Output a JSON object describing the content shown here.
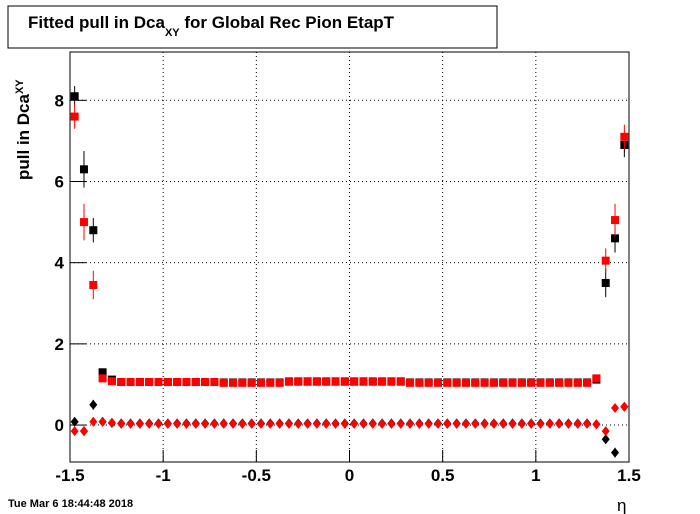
{
  "chart_data": {
    "type": "scatter",
    "title": "Fitted pull in Dca",
    "title_subscript": "XY",
    "title_suffix": " for Global Rec Pion EtapT",
    "y_label": "pull in Dca",
    "y_label_subscript": "XY",
    "x_label": "η",
    "timestamp": "Tue Mar  6 18:44:48 2018",
    "xlim": [
      -1.5,
      1.5
    ],
    "xticks": [
      -1.5,
      -1,
      -0.5,
      0,
      0.5,
      1,
      1.5
    ],
    "ylim": [
      -0.91,
      9.19
    ],
    "yticks": [
      0,
      2,
      4,
      6,
      8
    ],
    "grid": true,
    "x": [
      -1.475,
      -1.425,
      -1.375,
      -1.325,
      -1.275,
      -1.225,
      -1.175,
      -1.125,
      -1.075,
      -1.025,
      -0.975,
      -0.925,
      -0.875,
      -0.825,
      -0.775,
      -0.725,
      -0.675,
      -0.625,
      -0.575,
      -0.525,
      -0.475,
      -0.425,
      -0.375,
      -0.325,
      -0.275,
      -0.225,
      -0.175,
      -0.125,
      -0.075,
      -0.025,
      0.025,
      0.075,
      0.125,
      0.175,
      0.225,
      0.275,
      0.325,
      0.375,
      0.425,
      0.475,
      0.525,
      0.575,
      0.625,
      0.675,
      0.725,
      0.775,
      0.825,
      0.875,
      0.925,
      0.975,
      1.025,
      1.075,
      1.125,
      1.175,
      1.225,
      1.275,
      1.325,
      1.375,
      1.425,
      1.475
    ],
    "series": [
      {
        "color": "#000000",
        "marker": "square",
        "values": [
          8.1,
          6.3,
          4.8,
          1.3,
          1.12,
          1.06,
          1.06,
          1.06,
          1.06,
          1.06,
          1.06,
          1.06,
          1.06,
          1.06,
          1.06,
          1.06,
          1.05,
          1.05,
          1.05,
          1.05,
          1.05,
          1.05,
          1.05,
          1.07,
          1.07,
          1.07,
          1.07,
          1.07,
          1.07,
          1.07,
          1.07,
          1.07,
          1.07,
          1.07,
          1.07,
          1.07,
          1.05,
          1.05,
          1.05,
          1.05,
          1.05,
          1.05,
          1.05,
          1.05,
          1.05,
          1.05,
          1.05,
          1.05,
          1.05,
          1.05,
          1.05,
          1.05,
          1.05,
          1.05,
          1.05,
          1.05,
          1.12,
          3.5,
          4.6,
          6.9
        ],
        "errors": [
          0.25,
          0.45,
          0.3,
          0.06,
          0.03,
          0.02,
          0.02,
          0.02,
          0.02,
          0.02,
          0.02,
          0.02,
          0.02,
          0.02,
          0.02,
          0.02,
          0.02,
          0.02,
          0.02,
          0.02,
          0.02,
          0.02,
          0.02,
          0.02,
          0.02,
          0.02,
          0.02,
          0.02,
          0.02,
          0.02,
          0.02,
          0.02,
          0.02,
          0.02,
          0.02,
          0.02,
          0.02,
          0.02,
          0.02,
          0.02,
          0.02,
          0.02,
          0.02,
          0.02,
          0.02,
          0.02,
          0.02,
          0.02,
          0.02,
          0.02,
          0.02,
          0.02,
          0.02,
          0.02,
          0.02,
          0.02,
          0.03,
          0.35,
          0.35,
          0.3
        ]
      },
      {
        "color": "#ff0000",
        "marker": "square",
        "values": [
          7.6,
          5.0,
          3.45,
          1.15,
          1.08,
          1.06,
          1.06,
          1.06,
          1.06,
          1.06,
          1.06,
          1.06,
          1.06,
          1.06,
          1.06,
          1.06,
          1.04,
          1.04,
          1.04,
          1.04,
          1.04,
          1.04,
          1.04,
          1.08,
          1.08,
          1.08,
          1.08,
          1.08,
          1.08,
          1.08,
          1.08,
          1.08,
          1.08,
          1.08,
          1.08,
          1.08,
          1.04,
          1.04,
          1.04,
          1.04,
          1.04,
          1.04,
          1.04,
          1.04,
          1.04,
          1.04,
          1.04,
          1.04,
          1.04,
          1.04,
          1.04,
          1.04,
          1.04,
          1.04,
          1.04,
          1.04,
          1.15,
          4.05,
          5.05,
          7.1
        ],
        "errors": [
          0.3,
          0.45,
          0.35,
          0.05,
          0.03,
          0.02,
          0.02,
          0.02,
          0.02,
          0.02,
          0.02,
          0.02,
          0.02,
          0.02,
          0.02,
          0.02,
          0.02,
          0.02,
          0.02,
          0.02,
          0.02,
          0.02,
          0.02,
          0.02,
          0.02,
          0.02,
          0.02,
          0.02,
          0.02,
          0.02,
          0.02,
          0.02,
          0.02,
          0.02,
          0.02,
          0.02,
          0.02,
          0.02,
          0.02,
          0.02,
          0.02,
          0.02,
          0.02,
          0.02,
          0.02,
          0.02,
          0.02,
          0.02,
          0.02,
          0.02,
          0.02,
          0.02,
          0.02,
          0.02,
          0.02,
          0.02,
          0.03,
          0.3,
          0.4,
          0.3
        ]
      },
      {
        "color": "#000000",
        "marker": "diamond",
        "values": [
          0.08,
          -0.15,
          0.5,
          0.08,
          0.05,
          0.04,
          0.04,
          0.04,
          0.04,
          0.04,
          0.04,
          0.04,
          0.04,
          0.04,
          0.04,
          0.04,
          0.04,
          0.04,
          0.04,
          0.04,
          0.04,
          0.04,
          0.04,
          0.04,
          0.04,
          0.04,
          0.04,
          0.04,
          0.04,
          0.04,
          0.04,
          0.04,
          0.04,
          0.04,
          0.04,
          0.04,
          0.04,
          0.04,
          0.04,
          0.04,
          0.04,
          0.04,
          0.04,
          0.04,
          0.04,
          0.04,
          0.04,
          0.04,
          0.04,
          0.04,
          0.04,
          0.04,
          0.04,
          0.04,
          0.04,
          0.04,
          0.02,
          -0.35,
          -0.68,
          0.45
        ],
        "errors": [
          0.1,
          0.1,
          0.12,
          0.02,
          0.01,
          0.01,
          0.01,
          0.01,
          0.01,
          0.01,
          0.01,
          0.01,
          0.01,
          0.01,
          0.01,
          0.01,
          0.01,
          0.01,
          0.01,
          0.01,
          0.01,
          0.01,
          0.01,
          0.01,
          0.01,
          0.01,
          0.01,
          0.01,
          0.01,
          0.01,
          0.01,
          0.01,
          0.01,
          0.01,
          0.01,
          0.01,
          0.01,
          0.01,
          0.01,
          0.01,
          0.01,
          0.01,
          0.01,
          0.01,
          0.01,
          0.01,
          0.01,
          0.01,
          0.01,
          0.01,
          0.01,
          0.01,
          0.01,
          0.01,
          0.01,
          0.01,
          0.02,
          0.1,
          0.12,
          0.1
        ]
      },
      {
        "color": "#ff0000",
        "marker": "diamond",
        "values": [
          -0.15,
          -0.15,
          0.08,
          0.08,
          0.06,
          0.03,
          0.03,
          0.03,
          0.03,
          0.03,
          0.03,
          0.03,
          0.03,
          0.03,
          0.03,
          0.03,
          0.03,
          0.03,
          0.03,
          0.03,
          0.03,
          0.03,
          0.03,
          0.03,
          0.03,
          0.03,
          0.03,
          0.03,
          0.03,
          0.03,
          0.03,
          0.03,
          0.03,
          0.03,
          0.03,
          0.03,
          0.03,
          0.03,
          0.03,
          0.03,
          0.03,
          0.03,
          0.03,
          0.03,
          0.03,
          0.03,
          0.03,
          0.03,
          0.03,
          0.03,
          0.03,
          0.03,
          0.03,
          0.03,
          0.03,
          0.03,
          0.02,
          -0.15,
          0.42,
          0.45
        ],
        "errors": [
          0.1,
          0.12,
          0.03,
          0.02,
          0.01,
          0.01,
          0.01,
          0.01,
          0.01,
          0.01,
          0.01,
          0.01,
          0.01,
          0.01,
          0.01,
          0.01,
          0.01,
          0.01,
          0.01,
          0.01,
          0.01,
          0.01,
          0.01,
          0.01,
          0.01,
          0.01,
          0.01,
          0.01,
          0.01,
          0.01,
          0.01,
          0.01,
          0.01,
          0.01,
          0.01,
          0.01,
          0.01,
          0.01,
          0.01,
          0.01,
          0.01,
          0.01,
          0.01,
          0.01,
          0.01,
          0.01,
          0.01,
          0.01,
          0.01,
          0.01,
          0.01,
          0.01,
          0.01,
          0.01,
          0.01,
          0.01,
          0.02,
          0.08,
          0.1,
          0.1
        ]
      }
    ]
  }
}
